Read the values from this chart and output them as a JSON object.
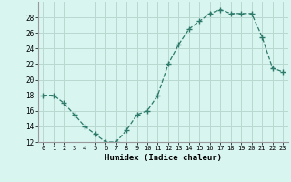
{
  "x": [
    0,
    1,
    2,
    3,
    4,
    5,
    6,
    7,
    8,
    9,
    10,
    11,
    12,
    13,
    14,
    15,
    16,
    17,
    18,
    19,
    20,
    21,
    22,
    23
  ],
  "y": [
    18,
    18,
    17,
    15.5,
    14,
    13,
    12,
    12,
    13.5,
    15.5,
    16,
    18,
    22,
    24.5,
    26.5,
    27.5,
    28.5,
    29,
    28.5,
    28.5,
    28.5,
    25.5,
    21.5,
    21
  ],
  "line_color": "#2d7a6a",
  "marker_color": "#2d7a6a",
  "bg_color": "#d8f5f0",
  "grid_color": "#b8d8d0",
  "xlabel": "Humidex (Indice chaleur)",
  "ylim": [
    12,
    30
  ],
  "xlim": [
    -0.5,
    23.5
  ],
  "yticks": [
    12,
    14,
    16,
    18,
    20,
    22,
    24,
    26,
    28
  ],
  "xticks": [
    0,
    1,
    2,
    3,
    4,
    5,
    6,
    7,
    8,
    9,
    10,
    11,
    12,
    13,
    14,
    15,
    16,
    17,
    18,
    19,
    20,
    21,
    22,
    23
  ]
}
